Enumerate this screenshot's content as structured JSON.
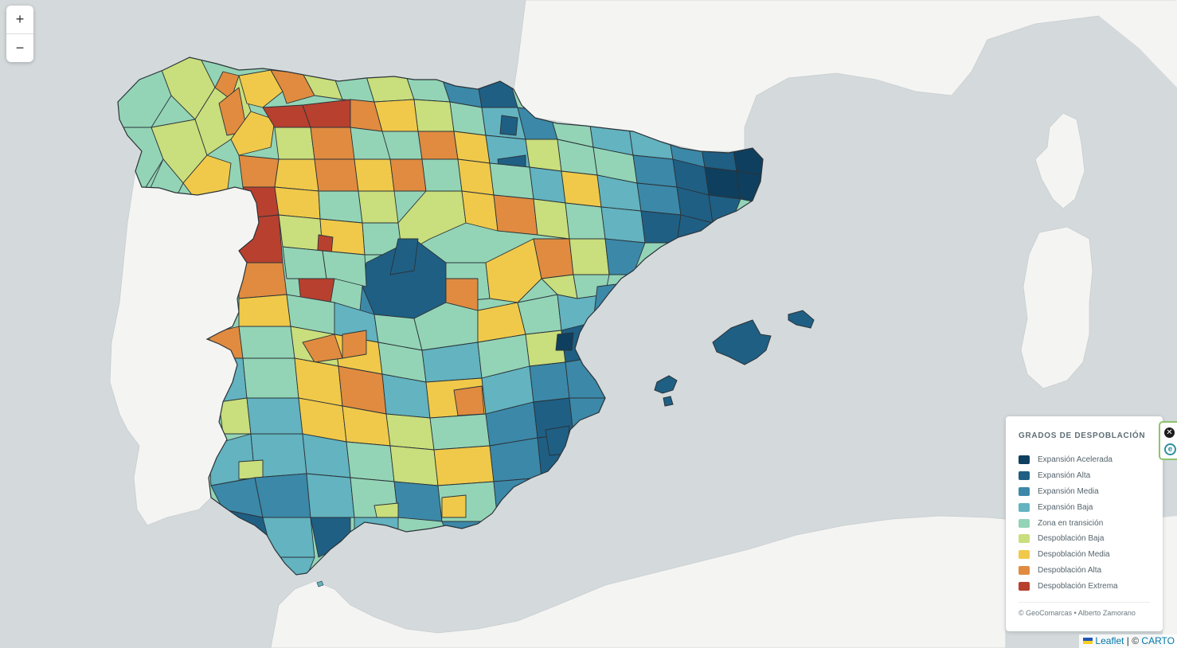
{
  "zoom": {
    "in_label": "+",
    "out_label": "−"
  },
  "legend": {
    "title": "GRADOS DE DESPOBLACIÓN",
    "items": [
      {
        "label": "Expansión Acelerada",
        "color": "#0f3f5e"
      },
      {
        "label": "Expansión Alta",
        "color": "#1f5f84"
      },
      {
        "label": "Expansión Media",
        "color": "#3c88a8"
      },
      {
        "label": "Expansión Baja",
        "color": "#63b3c0"
      },
      {
        "label": "Zona en transición",
        "color": "#93d4b6"
      },
      {
        "label": "Despoblación Baja",
        "color": "#c9de7c"
      },
      {
        "label": "Despoblación Media",
        "color": "#f0c94a"
      },
      {
        "label": "Despoblación Alta",
        "color": "#e08b40"
      },
      {
        "label": "Despoblación Extrema",
        "color": "#b8402f"
      }
    ],
    "credit": "© GeoComarcas • Alberto Zamorano"
  },
  "side_panel": {
    "close_icon": "close-circle-icon",
    "brand_icon": "e-logo-icon",
    "brand_letter": "e"
  },
  "attribution": {
    "leaflet": "Leaflet",
    "separator": " | © ",
    "carto": "CARTO"
  },
  "map": {
    "basemap": "light-gray",
    "colors": {
      "sea": "#d4dadc",
      "land": "#f4f4f3",
      "border": "#2b3338"
    },
    "features": [
      "Iberian Peninsula",
      "Balearic Islands",
      "Corsica",
      "Sardinia",
      "North Africa coast",
      "Southern France coast"
    ]
  }
}
